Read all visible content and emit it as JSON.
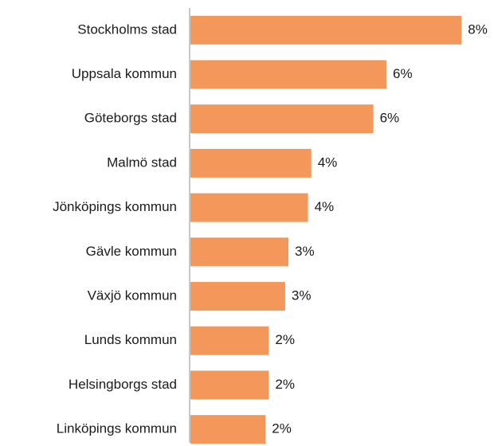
{
  "chart_data": {
    "type": "bar",
    "orientation": "horizontal",
    "categories": [
      "Stockholms stad",
      "Uppsala kommun",
      "Göteborgs stad",
      "Malmö stad",
      "Jönköpings kommun",
      "Gävle kommun",
      "Växjö kommun",
      "Lunds kommun",
      "Helsingborgs stad",
      "Linköpings kommun"
    ],
    "values": [
      8.3,
      6.0,
      5.6,
      3.7,
      3.6,
      3.0,
      2.9,
      2.4,
      2.4,
      2.3
    ],
    "value_labels": [
      "8%",
      "6%",
      "6%",
      "4%",
      "4%",
      "3%",
      "3%",
      "2%",
      "2%",
      "2%"
    ],
    "color": "#f4975a",
    "xlim": [
      0,
      9
    ]
  }
}
